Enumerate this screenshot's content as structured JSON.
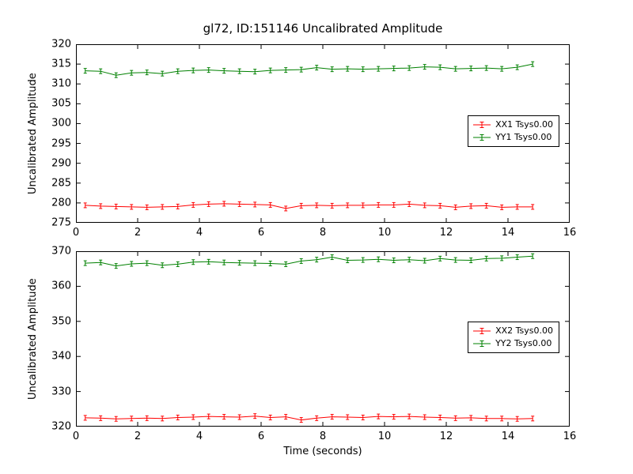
{
  "title": "gl72, ID:151146 Uncalibrated Amplitude",
  "xlabel": "Time (seconds)",
  "chart_data": [
    {
      "type": "line",
      "ylabel": "Uncalibrated Amplitude",
      "xlim": [
        0,
        16
      ],
      "ylim": [
        275,
        320
      ],
      "xticks": [
        0,
        2,
        4,
        6,
        8,
        10,
        12,
        14,
        16
      ],
      "yticks": [
        275,
        280,
        285,
        290,
        295,
        300,
        305,
        310,
        315,
        320
      ],
      "grid": false,
      "legend_position": "right-center",
      "x": [
        0.3,
        0.8,
        1.3,
        1.8,
        2.3,
        2.8,
        3.3,
        3.8,
        4.3,
        4.8,
        5.3,
        5.8,
        6.3,
        6.8,
        7.3,
        7.8,
        8.3,
        8.8,
        9.3,
        9.8,
        10.3,
        10.8,
        11.3,
        11.8,
        12.3,
        12.8,
        13.3,
        13.8,
        14.3,
        14.8
      ],
      "series": [
        {
          "name": "XX1 Tsys0.00",
          "color": "#ff0000",
          "values": [
            279.4,
            279.2,
            279.1,
            279.0,
            278.9,
            279.0,
            279.1,
            279.5,
            279.7,
            279.8,
            279.7,
            279.6,
            279.5,
            278.6,
            279.3,
            279.4,
            279.3,
            279.4,
            279.4,
            279.5,
            279.5,
            279.7,
            279.4,
            279.3,
            278.9,
            279.2,
            279.3,
            278.9,
            279.0,
            279.0
          ]
        },
        {
          "name": "YY1 Tsys0.00",
          "color": "#008000",
          "values": [
            313.3,
            313.2,
            312.2,
            312.8,
            312.9,
            312.6,
            313.2,
            313.4,
            313.5,
            313.3,
            313.2,
            313.1,
            313.4,
            313.5,
            313.6,
            314.1,
            313.7,
            313.8,
            313.7,
            313.8,
            313.9,
            314.0,
            314.3,
            314.2,
            313.8,
            313.9,
            314.0,
            313.8,
            314.2,
            315.0
          ]
        }
      ]
    },
    {
      "type": "line",
      "ylabel": "Uncalibrated Amplitude",
      "xlim": [
        0,
        16
      ],
      "ylim": [
        320,
        370
      ],
      "xticks": [
        0,
        2,
        4,
        6,
        8,
        10,
        12,
        14,
        16
      ],
      "yticks": [
        320,
        330,
        340,
        350,
        360,
        370
      ],
      "grid": false,
      "legend_position": "right-center",
      "x": [
        0.3,
        0.8,
        1.3,
        1.8,
        2.3,
        2.8,
        3.3,
        3.8,
        4.3,
        4.8,
        5.3,
        5.8,
        6.3,
        6.8,
        7.3,
        7.8,
        8.3,
        8.8,
        9.3,
        9.8,
        10.3,
        10.8,
        11.3,
        11.8,
        12.3,
        12.8,
        13.3,
        13.8,
        14.3,
        14.8
      ],
      "series": [
        {
          "name": "XX2 Tsys0.00",
          "color": "#ff0000",
          "values": [
            322.5,
            322.4,
            322.2,
            322.3,
            322.4,
            322.3,
            322.6,
            322.7,
            322.9,
            322.8,
            322.7,
            323.0,
            322.6,
            322.8,
            321.9,
            322.4,
            322.8,
            322.7,
            322.6,
            322.9,
            322.8,
            322.9,
            322.7,
            322.6,
            322.4,
            322.5,
            322.3,
            322.3,
            322.2,
            322.3
          ]
        },
        {
          "name": "YY2 Tsys0.00",
          "color": "#008000",
          "values": [
            366.6,
            366.8,
            365.8,
            366.4,
            366.6,
            366.0,
            366.3,
            366.9,
            367.0,
            366.8,
            366.7,
            366.6,
            366.5,
            366.3,
            367.2,
            367.6,
            368.3,
            367.4,
            367.5,
            367.7,
            367.4,
            367.6,
            367.3,
            367.9,
            367.5,
            367.4,
            367.9,
            368.0,
            368.3,
            368.6
          ]
        }
      ]
    }
  ]
}
